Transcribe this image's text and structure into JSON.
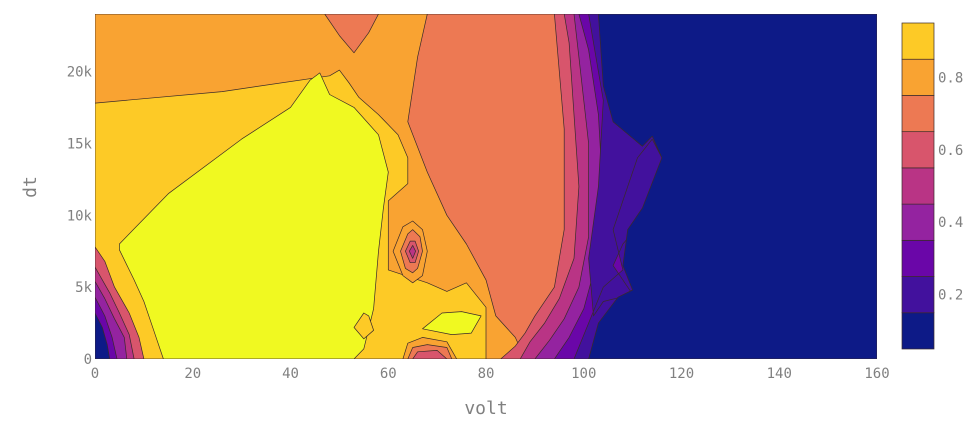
{
  "chart_data": {
    "type": "contour",
    "xlabel": "volt",
    "ylabel": "dt",
    "xlim": [
      0,
      160
    ],
    "ylim": [
      0,
      24000
    ],
    "x_ticks": [
      {
        "value": 0,
        "label": "0"
      },
      {
        "value": 20,
        "label": "20"
      },
      {
        "value": 40,
        "label": "40"
      },
      {
        "value": 60,
        "label": "60"
      },
      {
        "value": 80,
        "label": "80"
      },
      {
        "value": 100,
        "label": "100"
      },
      {
        "value": 120,
        "label": "120"
      },
      {
        "value": 140,
        "label": "140"
      },
      {
        "value": 160,
        "label": "160"
      }
    ],
    "y_ticks": [
      {
        "value": 0,
        "label": "0"
      },
      {
        "value": 5000,
        "label": "5k"
      },
      {
        "value": 10000,
        "label": "10k"
      },
      {
        "value": 15000,
        "label": "15k"
      },
      {
        "value": 20000,
        "label": "20k"
      }
    ],
    "colorbar": {
      "range": [
        0.05,
        0.95
      ],
      "ticks": [
        {
          "value": 0.2,
          "label": "0.2"
        },
        {
          "value": 0.4,
          "label": "0.4"
        },
        {
          "value": 0.6,
          "label": "0.6"
        },
        {
          "value": 0.8,
          "label": "0.8"
        }
      ],
      "levels": [
        {
          "min": 0.05,
          "max": 0.15,
          "color": "#0d1a87"
        },
        {
          "min": 0.15,
          "max": 0.25,
          "color": "#42119d"
        },
        {
          "min": 0.25,
          "max": 0.35,
          "color": "#6a06a8"
        },
        {
          "min": 0.35,
          "max": 0.45,
          "color": "#9423a0"
        },
        {
          "min": 0.45,
          "max": 0.55,
          "color": "#b93485"
        },
        {
          "min": 0.55,
          "max": 0.65,
          "color": "#d8556c"
        },
        {
          "min": 0.65,
          "max": 0.75,
          "color": "#ed7953"
        },
        {
          "min": 0.75,
          "max": 0.85,
          "color": "#f9a332"
        },
        {
          "min": 0.85,
          "max": 0.95,
          "color": "#fdca26"
        },
        {
          "min": 0.95,
          "max": 1.0,
          "color": "#f0f921"
        }
      ]
    },
    "regions": [
      {
        "name": "band-0.7",
        "level": 0.7,
        "color": "#ed7953",
        "points": [
          [
            0,
            24000
          ],
          [
            94,
            24000
          ],
          [
            160,
            24000
          ],
          [
            160,
            0
          ],
          [
            0,
            0
          ]
        ]
      },
      {
        "name": "band-0.8",
        "level": 0.8,
        "color": "#f9a332",
        "points": [
          [
            0,
            24000
          ],
          [
            47,
            24000
          ],
          [
            50,
            22500
          ],
          [
            53,
            21300
          ],
          [
            56,
            22700
          ],
          [
            58,
            24000
          ],
          [
            68,
            24000
          ],
          [
            66,
            21000
          ],
          [
            64,
            16500
          ],
          [
            68,
            13000
          ],
          [
            72,
            10000
          ],
          [
            76,
            8000
          ],
          [
            80,
            5500
          ],
          [
            82,
            3000
          ],
          [
            86,
            1500
          ],
          [
            88,
            0
          ],
          [
            0,
            0
          ]
        ]
      },
      {
        "name": "band-0.9",
        "level": 0.9,
        "color": "#fdca26",
        "points": [
          [
            0,
            17800
          ],
          [
            26,
            18600
          ],
          [
            48,
            19700
          ],
          [
            50,
            20100
          ],
          [
            52,
            19200
          ],
          [
            54,
            18200
          ],
          [
            58,
            17000
          ],
          [
            62,
            15600
          ],
          [
            64,
            14000
          ],
          [
            64,
            12200
          ],
          [
            60,
            11000
          ],
          [
            60,
            6200
          ],
          [
            68,
            5300
          ],
          [
            72,
            4700
          ],
          [
            76,
            5300
          ],
          [
            80,
            3600
          ],
          [
            80,
            0
          ],
          [
            0,
            0
          ]
        ]
      },
      {
        "name": "band-1.0-main",
        "level": 1.0,
        "color": "#f0f921",
        "points": [
          [
            5,
            8000
          ],
          [
            15,
            11500
          ],
          [
            30,
            15300
          ],
          [
            40,
            17500
          ],
          [
            44,
            19400
          ],
          [
            46,
            19900
          ],
          [
            48,
            18400
          ],
          [
            53,
            17500
          ],
          [
            58,
            15600
          ],
          [
            60,
            13000
          ],
          [
            59,
            10500
          ],
          [
            58,
            7500
          ],
          [
            57,
            3500
          ],
          [
            55,
            700
          ],
          [
            53,
            0
          ],
          [
            14,
            0
          ],
          [
            12,
            2000
          ],
          [
            10,
            4000
          ],
          [
            8,
            5500
          ],
          [
            5,
            7600
          ]
        ]
      },
      {
        "name": "band-1.0-island",
        "level": 1.0,
        "color": "#f0f921",
        "points": [
          [
            67,
            2100
          ],
          [
            71,
            3200
          ],
          [
            75,
            3300
          ],
          [
            79,
            3000
          ],
          [
            77,
            1800
          ],
          [
            73,
            1700
          ]
        ]
      },
      {
        "name": "right-0.6",
        "level": 0.6,
        "color": "#d8556c",
        "points": [
          [
            94,
            24000
          ],
          [
            160,
            24000
          ],
          [
            160,
            0
          ],
          [
            83,
            0
          ],
          [
            86,
            900
          ],
          [
            88,
            1800
          ],
          [
            90,
            3000
          ],
          [
            94,
            5000
          ],
          [
            96,
            9000
          ],
          [
            96,
            16000
          ],
          [
            95,
            20000
          ]
        ]
      },
      {
        "name": "right-0.5",
        "level": 0.5,
        "color": "#b93485",
        "points": [
          [
            96,
            24000
          ],
          [
            160,
            24000
          ],
          [
            160,
            0
          ],
          [
            87,
            0
          ],
          [
            89,
            1200
          ],
          [
            92,
            2500
          ],
          [
            95,
            4200
          ],
          [
            98,
            7000
          ],
          [
            99,
            12000
          ],
          [
            98,
            17000
          ],
          [
            97,
            22000
          ]
        ]
      },
      {
        "name": "right-0.4",
        "level": 0.4,
        "color": "#9423a0",
        "points": [
          [
            98,
            24000
          ],
          [
            160,
            24000
          ],
          [
            160,
            0
          ],
          [
            90,
            0
          ],
          [
            93,
            1300
          ],
          [
            96,
            2800
          ],
          [
            99,
            5000
          ],
          [
            101,
            8500
          ],
          [
            101,
            15000
          ],
          [
            99,
            21000
          ]
        ]
      },
      {
        "name": "right-0.3",
        "level": 0.3,
        "color": "#6a06a8",
        "points": [
          [
            99,
            24000
          ],
          [
            160,
            24000
          ],
          [
            160,
            0
          ],
          [
            94,
            0
          ],
          [
            97,
            1500
          ],
          [
            100,
            3500
          ],
          [
            102,
            6000
          ],
          [
            104,
            11000
          ],
          [
            103,
            17000
          ],
          [
            101,
            21500
          ]
        ]
      },
      {
        "name": "right-0.2",
        "level": 0.2,
        "color": "#42119d",
        "points": [
          [
            101,
            24000
          ],
          [
            160,
            24000
          ],
          [
            160,
            0
          ],
          [
            98,
            0
          ],
          [
            101,
            2500
          ],
          [
            104,
            5000
          ],
          [
            108,
            6200
          ],
          [
            106,
            9000
          ],
          [
            109,
            12000
          ],
          [
            111,
            14000
          ],
          [
            114,
            15300
          ],
          [
            116,
            14000
          ],
          [
            113,
            10000
          ],
          [
            108,
            8000
          ],
          [
            106,
            6500
          ],
          [
            110,
            4500
          ],
          [
            104,
            4000
          ],
          [
            102,
            3000
          ],
          [
            101,
            7000
          ],
          [
            103,
            12000
          ],
          [
            104,
            18000
          ],
          [
            102,
            22000
          ]
        ]
      },
      {
        "name": "right-0.1",
        "level": 0.1,
        "color": "#0d1a87",
        "points": [
          [
            103,
            24000
          ],
          [
            160,
            24000
          ],
          [
            160,
            0
          ],
          [
            101,
            0
          ],
          [
            103,
            2500
          ],
          [
            107,
            4300
          ],
          [
            110,
            4800
          ],
          [
            108,
            6500
          ],
          [
            109,
            9000
          ],
          [
            112,
            10500
          ],
          [
            116,
            14000
          ],
          [
            114,
            15500
          ],
          [
            112,
            14800
          ],
          [
            106,
            16500
          ],
          [
            104,
            19000
          ]
        ]
      },
      {
        "name": "left-0.6",
        "level": 0.6,
        "color": "#d8556c",
        "points": [
          [
            0,
            7800
          ],
          [
            2,
            6800
          ],
          [
            4,
            5000
          ],
          [
            7,
            3200
          ],
          [
            9,
            1500
          ],
          [
            10,
            0
          ],
          [
            0,
            0
          ]
        ]
      },
      {
        "name": "left-0.5",
        "level": 0.5,
        "color": "#b93485",
        "points": [
          [
            0,
            6400
          ],
          [
            3,
            4600
          ],
          [
            5,
            3200
          ],
          [
            7,
            1700
          ],
          [
            8,
            0
          ],
          [
            0,
            0
          ]
        ]
      },
      {
        "name": "left-0.4",
        "level": 0.4,
        "color": "#9423a0",
        "points": [
          [
            0,
            5400
          ],
          [
            2,
            4200
          ],
          [
            4,
            2800
          ],
          [
            6,
            1500
          ],
          [
            6.5,
            0
          ],
          [
            0,
            0
          ]
        ]
      },
      {
        "name": "left-0.3",
        "level": 0.3,
        "color": "#6a06a8",
        "points": [
          [
            0,
            4300
          ],
          [
            2,
            3000
          ],
          [
            3.5,
            1500
          ],
          [
            4.5,
            0
          ],
          [
            0,
            0
          ]
        ]
      },
      {
        "name": "left-0.1",
        "level": 0.1,
        "color": "#0d1a87",
        "points": [
          [
            0,
            3200
          ],
          [
            1.5,
            2200
          ],
          [
            2.5,
            1000
          ],
          [
            3,
            0
          ],
          [
            0,
            0
          ]
        ]
      },
      {
        "name": "blob-0.8",
        "level": 0.8,
        "color": "#f9a332",
        "points": [
          [
            61,
            7500
          ],
          [
            63,
            9200
          ],
          [
            65,
            9600
          ],
          [
            67,
            9000
          ],
          [
            68,
            7500
          ],
          [
            67,
            5800
          ],
          [
            65,
            5300
          ],
          [
            63,
            5800
          ]
        ]
      },
      {
        "name": "blob-0.7",
        "level": 0.7,
        "color": "#ed7953",
        "points": [
          [
            62.5,
            7500
          ],
          [
            64,
            8700
          ],
          [
            65,
            9000
          ],
          [
            66.5,
            8500
          ],
          [
            67,
            7500
          ],
          [
            66,
            6300
          ],
          [
            65,
            6000
          ],
          [
            63.5,
            6300
          ]
        ]
      },
      {
        "name": "blob-0.6",
        "level": 0.6,
        "color": "#d8556c",
        "points": [
          [
            63.5,
            7500
          ],
          [
            64.5,
            8200
          ],
          [
            65.5,
            8200
          ],
          [
            66.2,
            7500
          ],
          [
            65.5,
            6700
          ],
          [
            64.5,
            6700
          ]
        ]
      },
      {
        "name": "blob-0.5",
        "level": 0.5,
        "color": "#b93485",
        "points": [
          [
            64.3,
            7500
          ],
          [
            65,
            7900
          ],
          [
            65.6,
            7500
          ],
          [
            65,
            7000
          ]
        ]
      },
      {
        "name": "blob-0.9",
        "level": 0.9,
        "color": "#fdca26",
        "points": [
          [
            53,
            2200
          ],
          [
            55,
            3200
          ],
          [
            56,
            3000
          ],
          [
            57,
            2000
          ],
          [
            55,
            1400
          ]
        ]
      },
      {
        "name": "bottom-0.8",
        "level": 0.8,
        "color": "#f9a332",
        "points": [
          [
            63,
            0
          ],
          [
            64,
            1100
          ],
          [
            67,
            1500
          ],
          [
            72,
            1200
          ],
          [
            74,
            0
          ]
        ]
      },
      {
        "name": "bottom-0.7",
        "level": 0.7,
        "color": "#ed7953",
        "points": [
          [
            64,
            0
          ],
          [
            65,
            800
          ],
          [
            68,
            1000
          ],
          [
            72,
            800
          ],
          [
            73,
            0
          ]
        ]
      },
      {
        "name": "bottom-0.6",
        "level": 0.6,
        "color": "#d8556c",
        "points": [
          [
            65,
            0
          ],
          [
            66,
            500
          ],
          [
            70,
            600
          ],
          [
            72,
            0
          ]
        ]
      }
    ]
  }
}
